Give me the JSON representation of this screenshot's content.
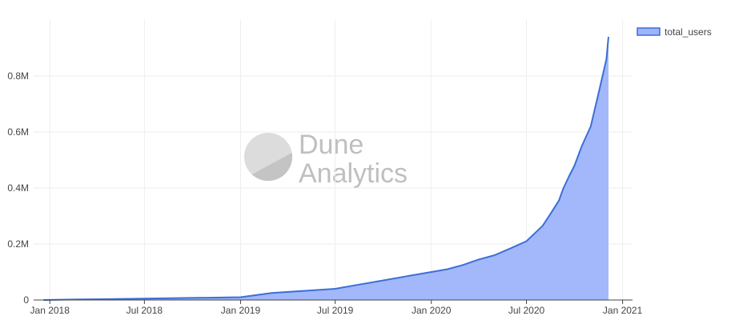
{
  "watermark": {
    "brand_line1": "Dune",
    "brand_line2": "Analytics"
  },
  "chart_data": {
    "type": "area",
    "title": "",
    "xlabel": "",
    "ylabel": "",
    "grid": true,
    "legend_position": "top-right",
    "x_tick_labels": [
      "Jan 2018",
      "Jul 2018",
      "Jan 2019",
      "Jul 2019",
      "Jan 2020",
      "Jul 2020",
      "Jan 2021"
    ],
    "x_tick_dates": [
      "2018-01-01",
      "2018-07-01",
      "2019-01-01",
      "2019-07-01",
      "2020-01-01",
      "2020-07-01",
      "2021-01-01"
    ],
    "xlim": [
      "2017-12-01",
      "2021-01-20"
    ],
    "y_tick_labels": [
      "0",
      "0.2M",
      "0.4M",
      "0.6M",
      "0.8M"
    ],
    "y_tick_values": [
      0,
      200000,
      400000,
      600000,
      800000
    ],
    "ylim": [
      0,
      1000000
    ],
    "colors": {
      "line": "#3c6fd6",
      "fill": "#9db4fa"
    },
    "series": [
      {
        "name": "total_users",
        "x": [
          "2017-12-20",
          "2018-03-01",
          "2018-07-01",
          "2019-01-01",
          "2019-03-01",
          "2019-07-01",
          "2019-08-15",
          "2019-10-01",
          "2019-11-15",
          "2020-01-01",
          "2020-02-01",
          "2020-03-01",
          "2020-04-01",
          "2020-05-01",
          "2020-06-01",
          "2020-07-01",
          "2020-07-15",
          "2020-08-01",
          "2020-08-15",
          "2020-09-01",
          "2020-09-10",
          "2020-09-20",
          "2020-10-01",
          "2020-10-15",
          "2020-11-01",
          "2020-11-15",
          "2020-12-01",
          "2020-12-05"
        ],
        "values": [
          0,
          2000,
          5000,
          10000,
          25000,
          40000,
          55000,
          70000,
          85000,
          100000,
          110000,
          125000,
          145000,
          160000,
          185000,
          210000,
          235000,
          265000,
          305000,
          355000,
          400000,
          440000,
          480000,
          550000,
          620000,
          730000,
          860000,
          940000
        ]
      }
    ]
  }
}
